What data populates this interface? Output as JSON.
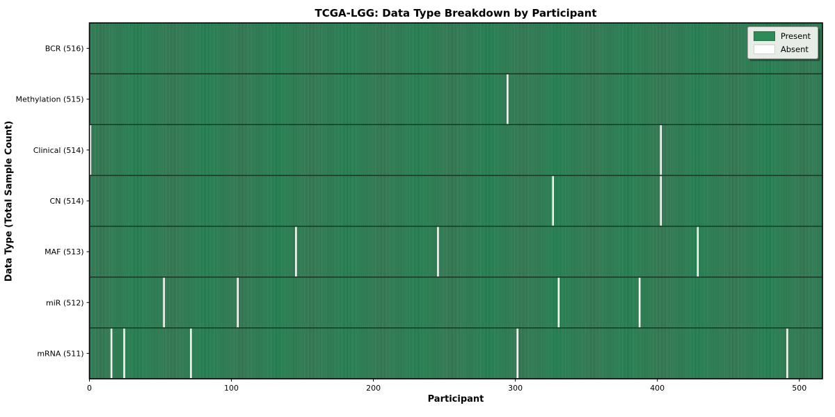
{
  "chart_data": {
    "type": "heatmap",
    "title": "TCGA-LGG: Data Type Breakdown by Participant",
    "xlabel": "Participant",
    "ylabel": "Data Type (Total Sample Count)",
    "xlim": [
      0,
      516
    ],
    "total_participants": 516,
    "x_ticks": [
      0,
      100,
      200,
      300,
      400,
      500
    ],
    "grid": false,
    "legend_position": "upper right",
    "legend": [
      {
        "label": "Present",
        "color": "#2e8b57"
      },
      {
        "label": "Absent",
        "color": "#ffffff"
      }
    ],
    "colors": {
      "present": "#2e8b57",
      "present_light": "#3f9168",
      "present_dark": "#1f5c3b",
      "absent_stripe": "#f4f4f1",
      "row_divider": "#0b1f14",
      "spine": "#000000",
      "legend_bg": "#e7ece6"
    },
    "rows": [
      {
        "label": "BCR (516)",
        "data_type": "BCR",
        "present_count": 516,
        "absent_participants": []
      },
      {
        "label": "Methylation (515)",
        "data_type": "Methylation",
        "present_count": 515,
        "absent_participants": [
          294
        ]
      },
      {
        "label": "Clinical (514)",
        "data_type": "Clinical",
        "present_count": 514,
        "absent_participants": [
          0,
          402
        ]
      },
      {
        "label": "CN (514)",
        "data_type": "CN",
        "present_count": 514,
        "absent_participants": [
          326,
          402
        ]
      },
      {
        "label": "MAF (513)",
        "data_type": "MAF",
        "present_count": 513,
        "absent_participants": [
          145,
          245,
          428
        ]
      },
      {
        "label": "miR (512)",
        "data_type": "miR",
        "present_count": 512,
        "absent_participants": [
          52,
          104,
          330,
          387
        ]
      },
      {
        "label": "mRNA (511)",
        "data_type": "mRNA",
        "present_count": 511,
        "absent_participants": [
          15,
          24,
          71,
          301,
          491
        ]
      }
    ]
  }
}
